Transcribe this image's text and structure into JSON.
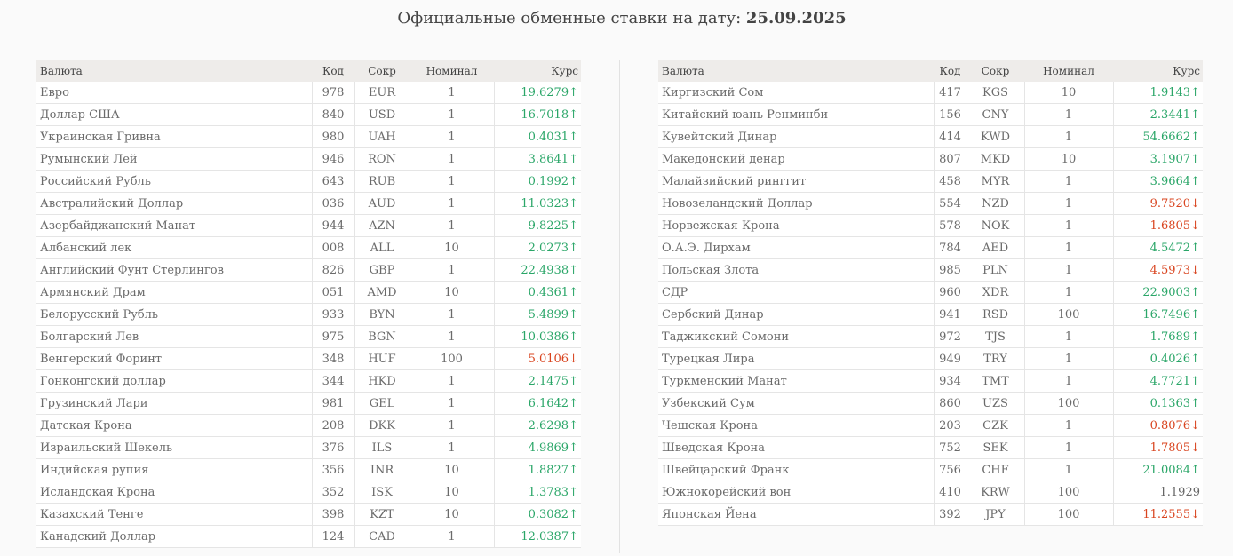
{
  "header": {
    "title_prefix": "Официальные обменные ставки на дату: ",
    "date": "25.09.2025"
  },
  "columns": {
    "name": "Валюта",
    "code": "Код",
    "abbr": "Сокр",
    "nominal": "Номинал",
    "rate": "Курс"
  },
  "colors": {
    "up": "#2aa668",
    "down": "#d9441f",
    "flat": "#666666",
    "header_bg": "#eeecea"
  },
  "left_rows": [
    {
      "name": "Евро",
      "code": "978",
      "abbr": "EUR",
      "nominal": "1",
      "rate": "19.6279",
      "trend": "up"
    },
    {
      "name": "Доллар США",
      "code": "840",
      "abbr": "USD",
      "nominal": "1",
      "rate": "16.7018",
      "trend": "up"
    },
    {
      "name": "Украинская Гривна",
      "code": "980",
      "abbr": "UAH",
      "nominal": "1",
      "rate": "0.4031",
      "trend": "up"
    },
    {
      "name": "Румынский Лей",
      "code": "946",
      "abbr": "RON",
      "nominal": "1",
      "rate": "3.8641",
      "trend": "up"
    },
    {
      "name": "Российский Рубль",
      "code": "643",
      "abbr": "RUB",
      "nominal": "1",
      "rate": "0.1992",
      "trend": "up"
    },
    {
      "name": "Австралийский Доллар",
      "code": "036",
      "abbr": "AUD",
      "nominal": "1",
      "rate": "11.0323",
      "trend": "up"
    },
    {
      "name": "Азербайджанский Манат",
      "code": "944",
      "abbr": "AZN",
      "nominal": "1",
      "rate": "9.8225",
      "trend": "up"
    },
    {
      "name": "Албанский лек",
      "code": "008",
      "abbr": "ALL",
      "nominal": "10",
      "rate": "2.0273",
      "trend": "up"
    },
    {
      "name": "Английский Фунт Стерлингов",
      "code": "826",
      "abbr": "GBP",
      "nominal": "1",
      "rate": "22.4938",
      "trend": "up"
    },
    {
      "name": "Армянский Драм",
      "code": "051",
      "abbr": "AMD",
      "nominal": "10",
      "rate": "0.4361",
      "trend": "up"
    },
    {
      "name": "Белорусский Рубль",
      "code": "933",
      "abbr": "BYN",
      "nominal": "1",
      "rate": "5.4899",
      "trend": "up"
    },
    {
      "name": "Болгарский Лев",
      "code": "975",
      "abbr": "BGN",
      "nominal": "1",
      "rate": "10.0386",
      "trend": "up"
    },
    {
      "name": "Венгерский Форинт",
      "code": "348",
      "abbr": "HUF",
      "nominal": "100",
      "rate": "5.0106",
      "trend": "down"
    },
    {
      "name": "Гонконгский доллар",
      "code": "344",
      "abbr": "HKD",
      "nominal": "1",
      "rate": "2.1475",
      "trend": "up"
    },
    {
      "name": "Грузинский Лари",
      "code": "981",
      "abbr": "GEL",
      "nominal": "1",
      "rate": "6.1642",
      "trend": "up"
    },
    {
      "name": "Датская Крона",
      "code": "208",
      "abbr": "DKK",
      "nominal": "1",
      "rate": "2.6298",
      "trend": "up"
    },
    {
      "name": "Израильский Шекель",
      "code": "376",
      "abbr": "ILS",
      "nominal": "1",
      "rate": "4.9869",
      "trend": "up"
    },
    {
      "name": "Индийская рупия",
      "code": "356",
      "abbr": "INR",
      "nominal": "10",
      "rate": "1.8827",
      "trend": "up"
    },
    {
      "name": "Исландская Крона",
      "code": "352",
      "abbr": "ISK",
      "nominal": "10",
      "rate": "1.3783",
      "trend": "up"
    },
    {
      "name": "Казахский Тенге",
      "code": "398",
      "abbr": "KZT",
      "nominal": "10",
      "rate": "0.3082",
      "trend": "up"
    },
    {
      "name": "Канадский Доллар",
      "code": "124",
      "abbr": "CAD",
      "nominal": "1",
      "rate": "12.0387",
      "trend": "up"
    }
  ],
  "right_rows": [
    {
      "name": "Киргизский Сом",
      "code": "417",
      "abbr": "KGS",
      "nominal": "10",
      "rate": "1.9143",
      "trend": "up"
    },
    {
      "name": "Китайский юань Ренминби",
      "code": "156",
      "abbr": "CNY",
      "nominal": "1",
      "rate": "2.3441",
      "trend": "up"
    },
    {
      "name": "Кувейтский Динар",
      "code": "414",
      "abbr": "KWD",
      "nominal": "1",
      "rate": "54.6662",
      "trend": "up"
    },
    {
      "name": "Македонский денар",
      "code": "807",
      "abbr": "MKD",
      "nominal": "10",
      "rate": "3.1907",
      "trend": "up"
    },
    {
      "name": "Малайзийский ринггит",
      "code": "458",
      "abbr": "MYR",
      "nominal": "1",
      "rate": "3.9664",
      "trend": "up"
    },
    {
      "name": "Новозеландский Доллар",
      "code": "554",
      "abbr": "NZD",
      "nominal": "1",
      "rate": "9.7520",
      "trend": "down"
    },
    {
      "name": "Норвежская Крона",
      "code": "578",
      "abbr": "NOK",
      "nominal": "1",
      "rate": "1.6805",
      "trend": "down"
    },
    {
      "name": "О.А.Э. Дирхам",
      "code": "784",
      "abbr": "AED",
      "nominal": "1",
      "rate": "4.5472",
      "trend": "up"
    },
    {
      "name": "Польская Злота",
      "code": "985",
      "abbr": "PLN",
      "nominal": "1",
      "rate": "4.5973",
      "trend": "down"
    },
    {
      "name": "СДР",
      "code": "960",
      "abbr": "XDR",
      "nominal": "1",
      "rate": "22.9003",
      "trend": "up"
    },
    {
      "name": "Сербский Динар",
      "code": "941",
      "abbr": "RSD",
      "nominal": "100",
      "rate": "16.7496",
      "trend": "up"
    },
    {
      "name": "Таджикский Сомони",
      "code": "972",
      "abbr": "TJS",
      "nominal": "1",
      "rate": "1.7689",
      "trend": "up"
    },
    {
      "name": "Турецкая Лира",
      "code": "949",
      "abbr": "TRY",
      "nominal": "1",
      "rate": "0.4026",
      "trend": "up"
    },
    {
      "name": "Туркменский Манат",
      "code": "934",
      "abbr": "TMT",
      "nominal": "1",
      "rate": "4.7721",
      "trend": "up"
    },
    {
      "name": "Узбекский Сум",
      "code": "860",
      "abbr": "UZS",
      "nominal": "100",
      "rate": "0.1363",
      "trend": "up"
    },
    {
      "name": "Чешская Крона",
      "code": "203",
      "abbr": "CZK",
      "nominal": "1",
      "rate": "0.8076",
      "trend": "down"
    },
    {
      "name": "Шведская Крона",
      "code": "752",
      "abbr": "SEK",
      "nominal": "1",
      "rate": "1.7805",
      "trend": "down"
    },
    {
      "name": "Швейцарский Франк",
      "code": "756",
      "abbr": "CHF",
      "nominal": "1",
      "rate": "21.0084",
      "trend": "up"
    },
    {
      "name": "Южнокорейский вон",
      "code": "410",
      "abbr": "KRW",
      "nominal": "100",
      "rate": "1.1929",
      "trend": "flat"
    },
    {
      "name": "Японская Йена",
      "code": "392",
      "abbr": "JPY",
      "nominal": "100",
      "rate": "11.2555",
      "trend": "down"
    }
  ],
  "arrows": {
    "up": "↑",
    "down": "↓",
    "flat": ""
  }
}
